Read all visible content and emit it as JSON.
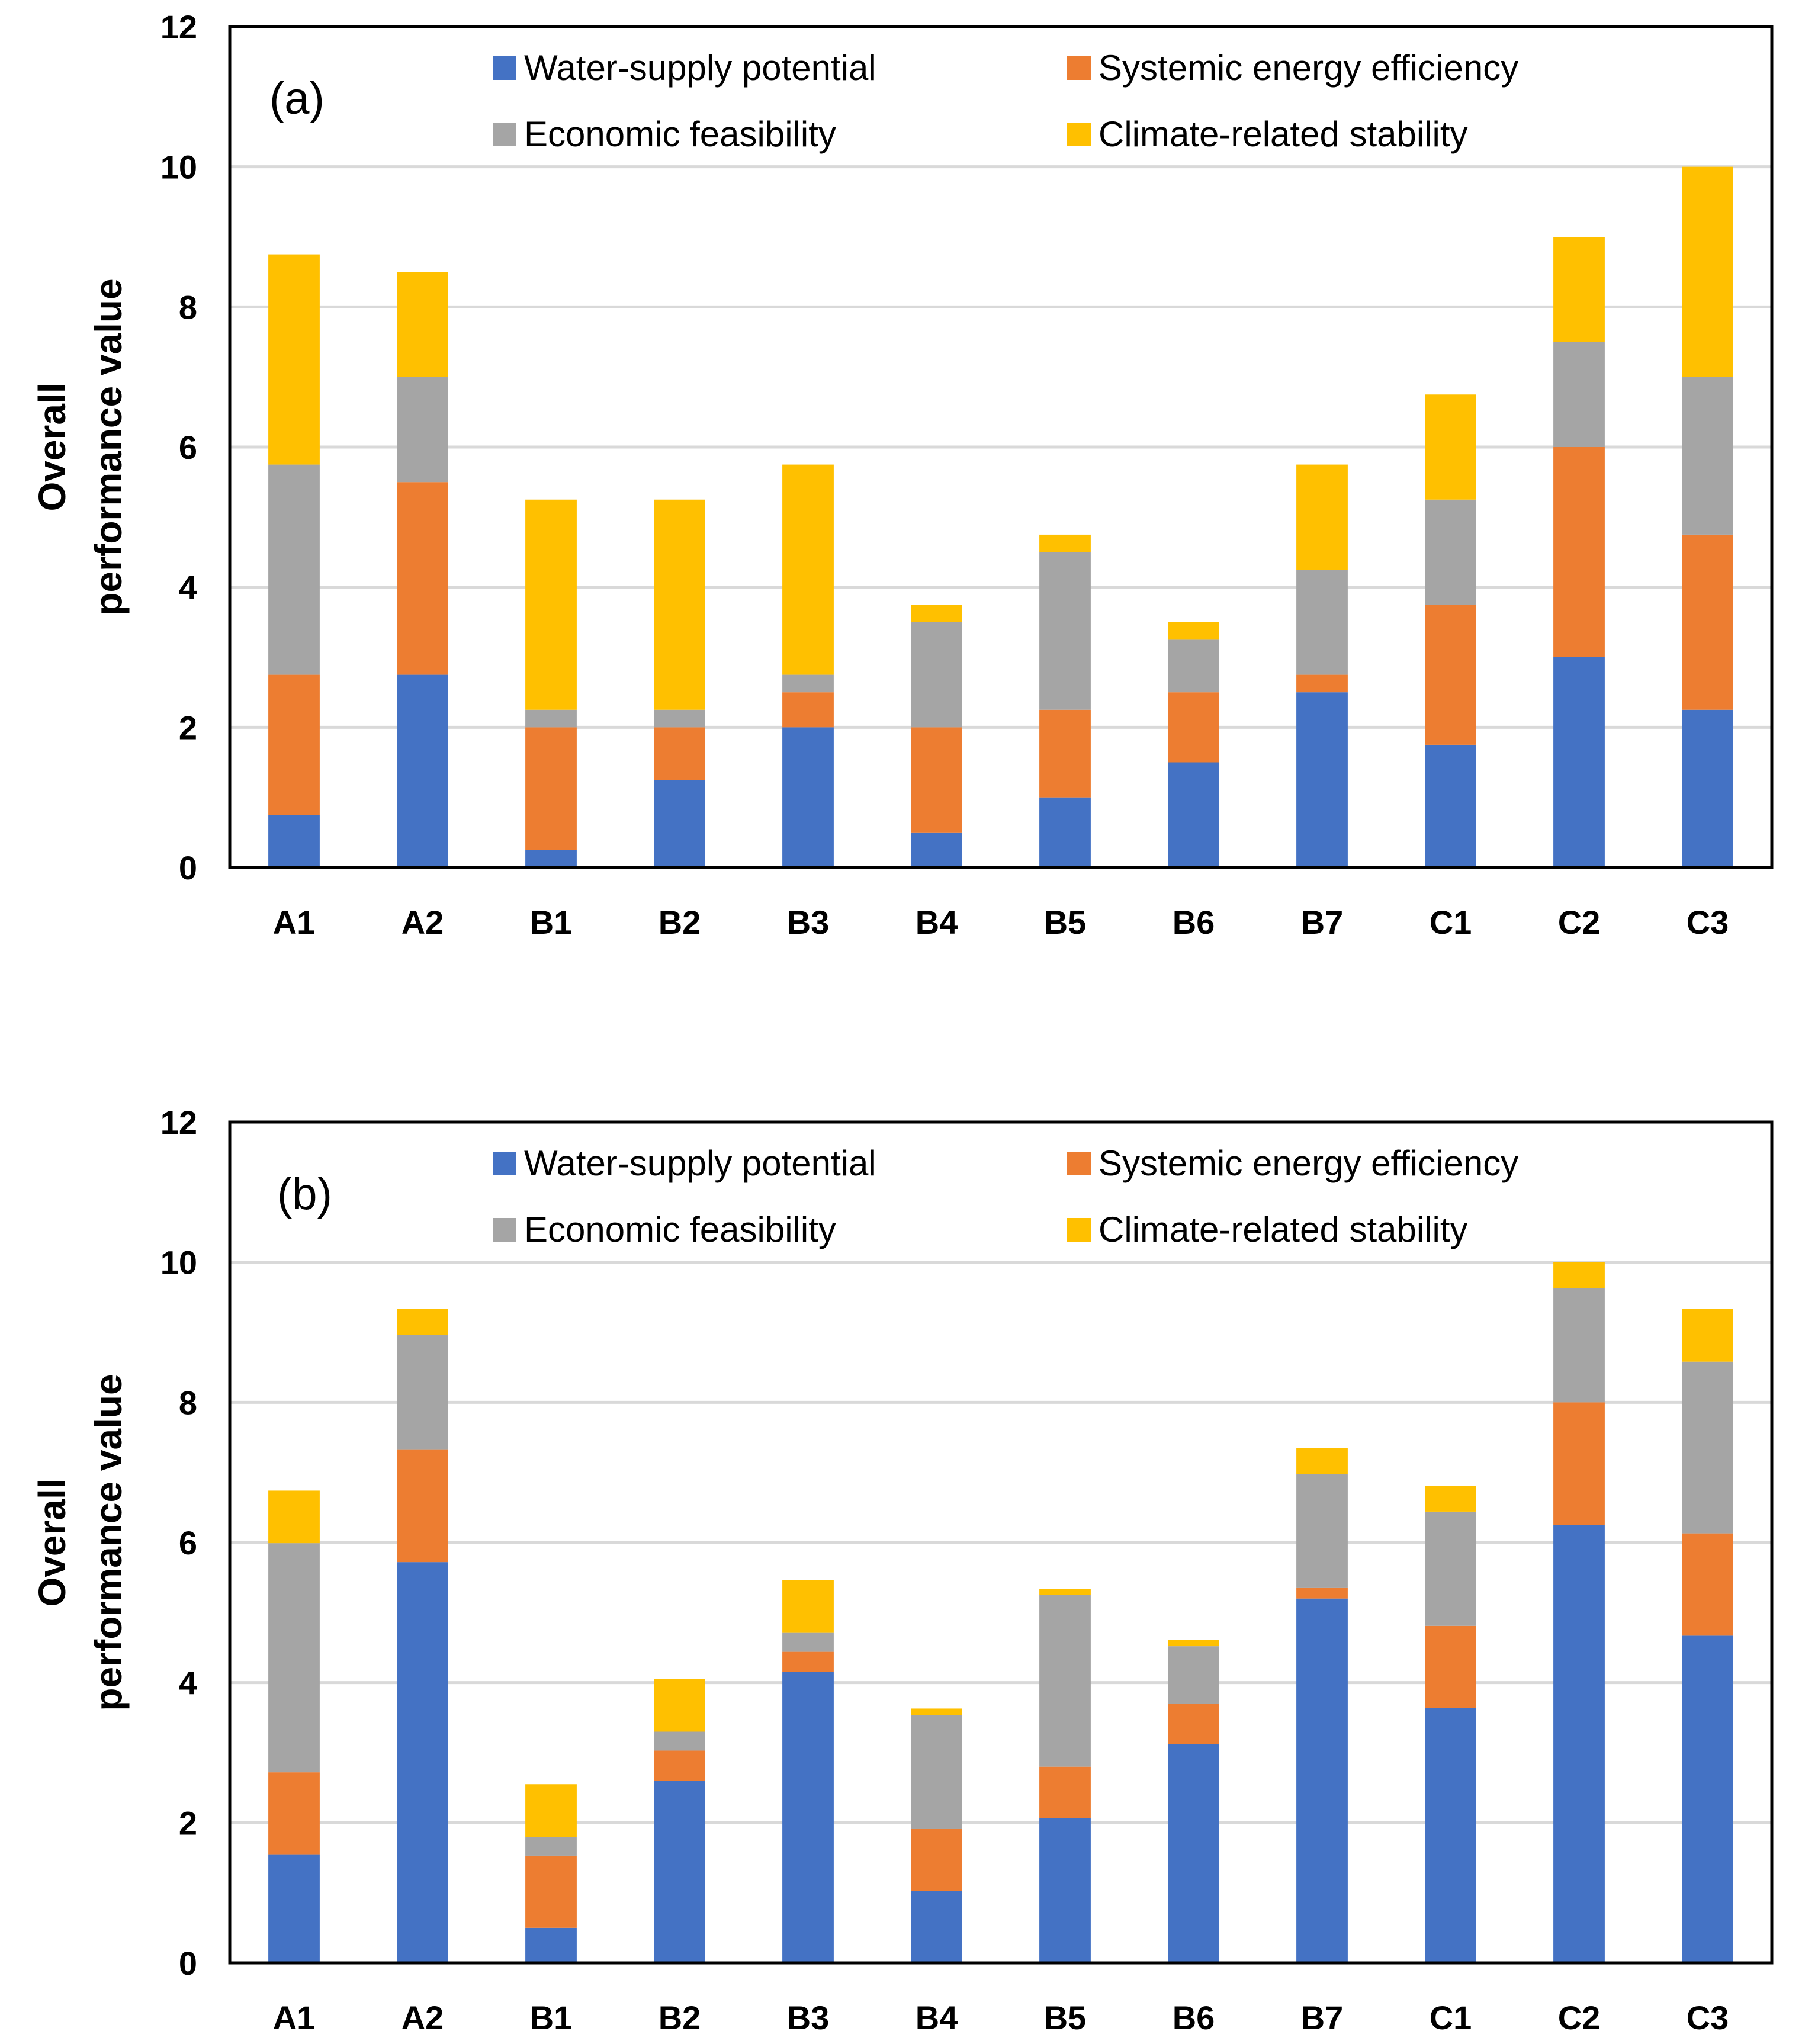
{
  "chart_data": [
    {
      "type": "bar",
      "stacked": true,
      "panel_label": "(a)",
      "ylabel_line1": "Overall",
      "ylabel_line2": "performance value",
      "ylim": [
        0,
        12
      ],
      "yticks": [
        0,
        2,
        4,
        6,
        8,
        10,
        12
      ],
      "grid": true,
      "categories": [
        "A1",
        "A2",
        "B1",
        "B2",
        "B3",
        "B4",
        "B5",
        "B6",
        "B7",
        "C1",
        "C2",
        "C3"
      ],
      "series": [
        {
          "name": "Water-supply potential",
          "color": "#4472C4",
          "values": [
            0.75,
            2.75,
            0.25,
            1.25,
            2.0,
            0.5,
            1.0,
            1.5,
            2.5,
            1.75,
            3.0,
            2.25
          ]
        },
        {
          "name": "Systemic energy efficiency",
          "color": "#ED7D31",
          "values": [
            2.0,
            2.75,
            1.75,
            0.75,
            0.5,
            1.5,
            1.25,
            1.0,
            0.25,
            2.0,
            3.0,
            2.5
          ]
        },
        {
          "name": "Economic feasibility",
          "color": "#A5A5A5",
          "values": [
            3.0,
            1.5,
            0.25,
            0.25,
            0.25,
            1.5,
            2.25,
            0.75,
            1.5,
            1.5,
            1.5,
            2.25
          ]
        },
        {
          "name": "Climate-related stability",
          "color": "#FFC000",
          "values": [
            3.0,
            1.5,
            3.0,
            3.0,
            3.0,
            0.25,
            0.25,
            0.25,
            1.5,
            1.5,
            1.5,
            3.0
          ]
        }
      ]
    },
    {
      "type": "bar",
      "stacked": true,
      "panel_label": "(b)",
      "ylabel_line1": "Overall",
      "ylabel_line2": "performance value",
      "ylim": [
        0,
        12
      ],
      "yticks": [
        0,
        2,
        4,
        6,
        8,
        10,
        12
      ],
      "grid": true,
      "categories": [
        "A1",
        "A2",
        "B1",
        "B2",
        "B3",
        "B4",
        "B5",
        "B6",
        "B7",
        "C1",
        "C2",
        "C3"
      ],
      "series": [
        {
          "name": "Water-supply potential",
          "color": "#4472C4",
          "values": [
            1.55,
            5.72,
            0.5,
            2.6,
            4.15,
            1.03,
            2.07,
            3.12,
            5.2,
            3.64,
            6.25,
            4.67
          ]
        },
        {
          "name": "Systemic energy efficiency",
          "color": "#ED7D31",
          "values": [
            1.17,
            1.61,
            1.03,
            0.43,
            0.29,
            0.88,
            0.73,
            0.58,
            0.15,
            1.17,
            1.75,
            1.46
          ]
        },
        {
          "name": "Economic feasibility",
          "color": "#A5A5A5",
          "values": [
            3.27,
            1.63,
            0.27,
            0.27,
            0.27,
            1.63,
            2.45,
            0.82,
            1.63,
            1.63,
            1.63,
            2.45
          ]
        },
        {
          "name": "Climate-related stability",
          "color": "#FFC000",
          "values": [
            0.75,
            0.37,
            0.75,
            0.75,
            0.75,
            0.09,
            0.09,
            0.09,
            0.37,
            0.37,
            0.37,
            0.75
          ]
        }
      ]
    }
  ]
}
